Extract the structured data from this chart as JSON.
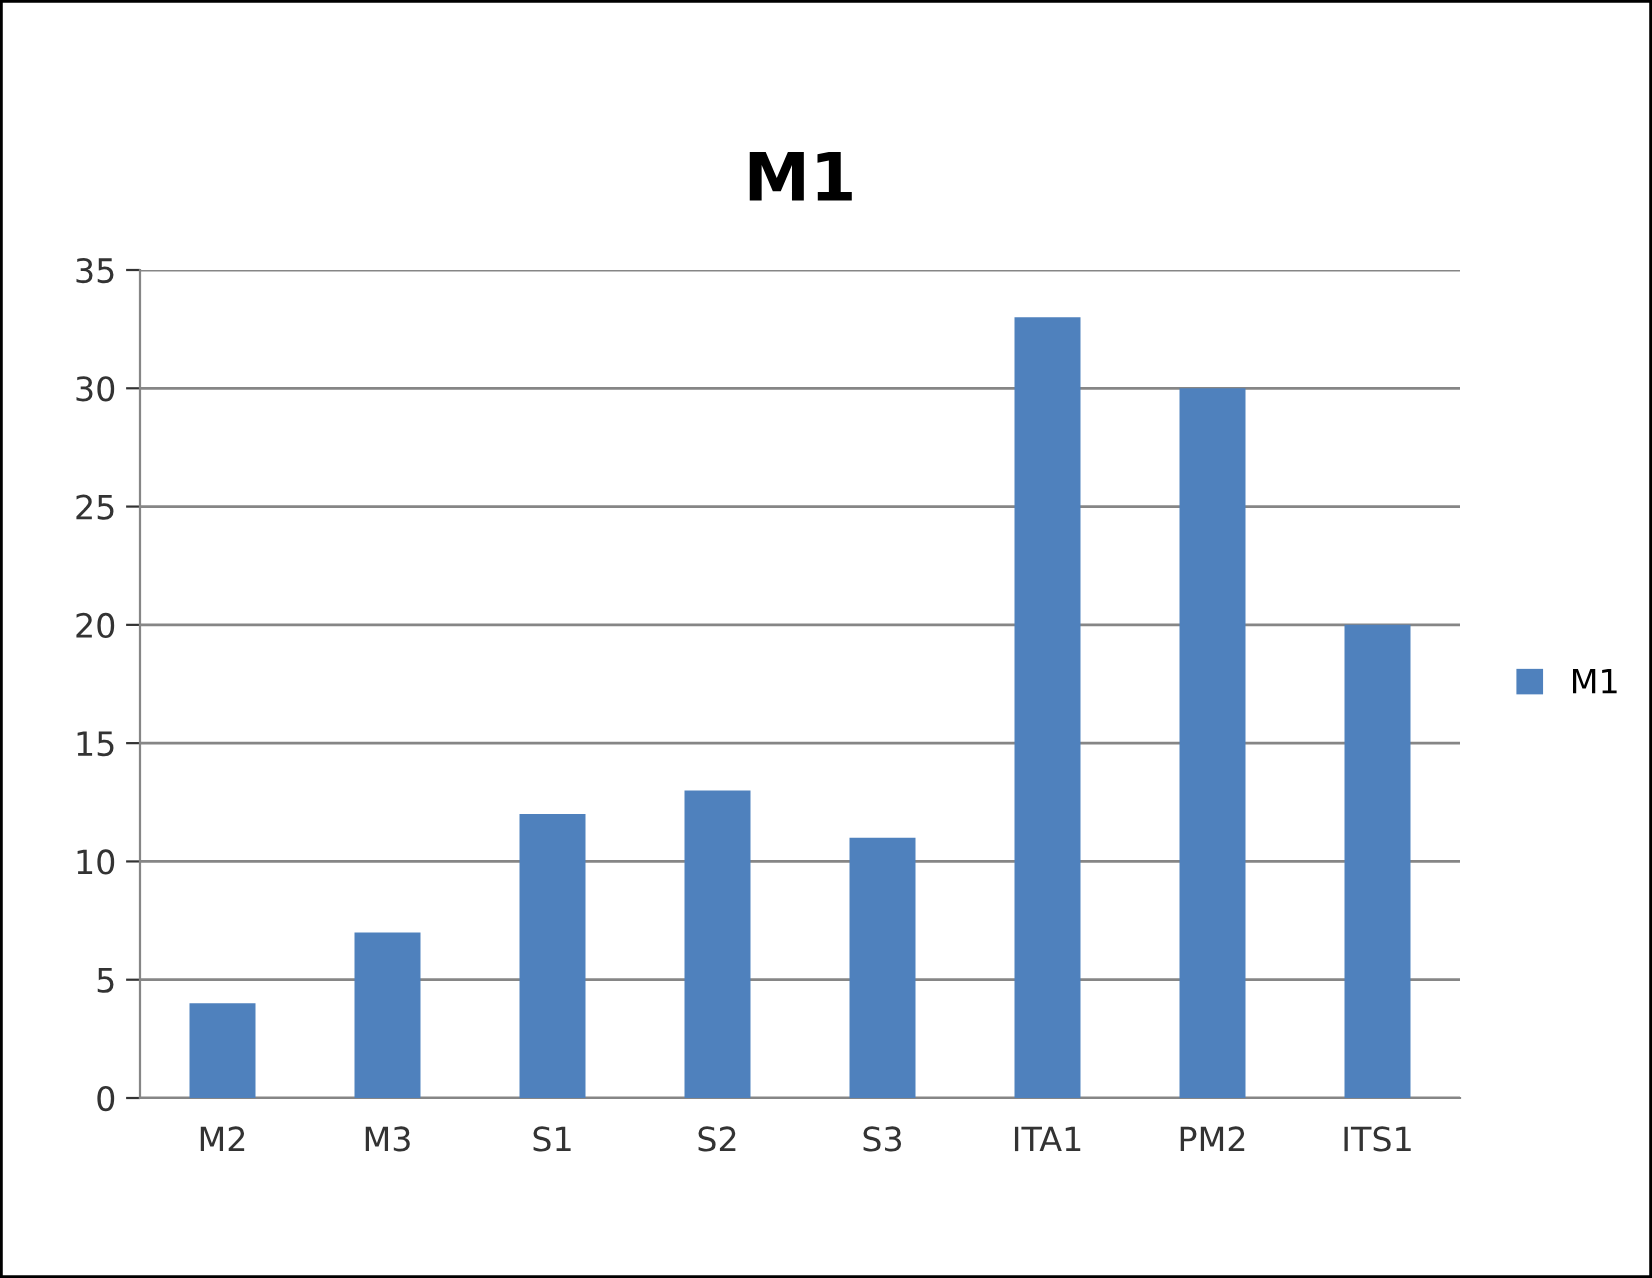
{
  "chart_data": {
    "type": "bar",
    "title": "M1",
    "categories": [
      "M2",
      "M3",
      "S1",
      "S2",
      "S3",
      "ITA1",
      "PM2",
      "ITS1"
    ],
    "series": [
      {
        "name": "M1",
        "color": "#4f81bd",
        "values": [
          4,
          7,
          12,
          13,
          11,
          33,
          30,
          20
        ]
      }
    ],
    "ylim": [
      0,
      35
    ],
    "yticks": [
      0,
      5,
      10,
      15,
      20,
      25,
      30,
      35
    ],
    "grid": "y",
    "legend": "right"
  }
}
